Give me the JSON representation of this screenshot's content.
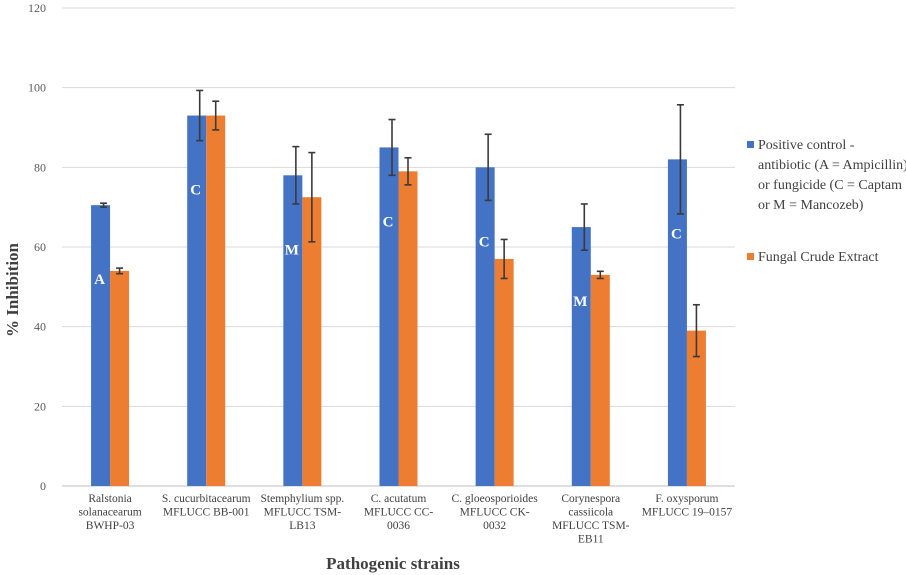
{
  "chart_data": {
    "type": "bar",
    "title": "",
    "xlabel": "Pathogenic strains",
    "ylabel": "% Inhibition",
    "ylim": [
      0,
      120
    ],
    "yticks": [
      0,
      20,
      40,
      60,
      80,
      100,
      120
    ],
    "grid": true,
    "legend_position": "right",
    "categories": [
      [
        "Ralstonia",
        "solanacearum",
        "BWHP-03"
      ],
      [
        "S. cucurbitacearum",
        "MFLUCC BB-001"
      ],
      [
        "Stemphylium spp.",
        "MFLUCC TSM-",
        "LB13"
      ],
      [
        "C. acutatum",
        "MFLUCC CC-",
        "0036"
      ],
      [
        "C. gloeosporioides",
        "MFLUCC CK-",
        "0032"
      ],
      [
        "Corynespora",
        "cassiicola",
        "MFLUCC TSM-",
        "EB11"
      ],
      [
        "F. oxysporum",
        "MFLUCC 19–0157"
      ]
    ],
    "series": [
      {
        "name": "Positive control - antibiotic (A = Ampicillin) or fungicide (C = Captam or M = Mancozeb)",
        "legend_lines": [
          "Positive control -",
          "antibiotic (A = Ampicillin)",
          "or fungicide (C = Captam",
          "or M = Mancozeb)"
        ],
        "color": "#4472c4",
        "values": [
          70.5,
          93,
          78,
          85,
          80,
          65,
          82
        ],
        "errors": [
          0.5,
          6.3,
          7.2,
          7,
          8.3,
          5.8,
          13.7
        ],
        "bar_labels": [
          "A",
          "C",
          "M",
          "C",
          "C",
          "M",
          "C"
        ]
      },
      {
        "name": "Fungal Crude Extract",
        "legend_lines": [
          "Fungal Crude Extract"
        ],
        "color": "#ed7d31",
        "values": [
          54,
          93,
          72.5,
          79,
          57,
          53,
          39
        ],
        "errors": [
          0.7,
          3.6,
          11.2,
          3.4,
          4.9,
          0.9,
          6.5
        ]
      }
    ]
  }
}
